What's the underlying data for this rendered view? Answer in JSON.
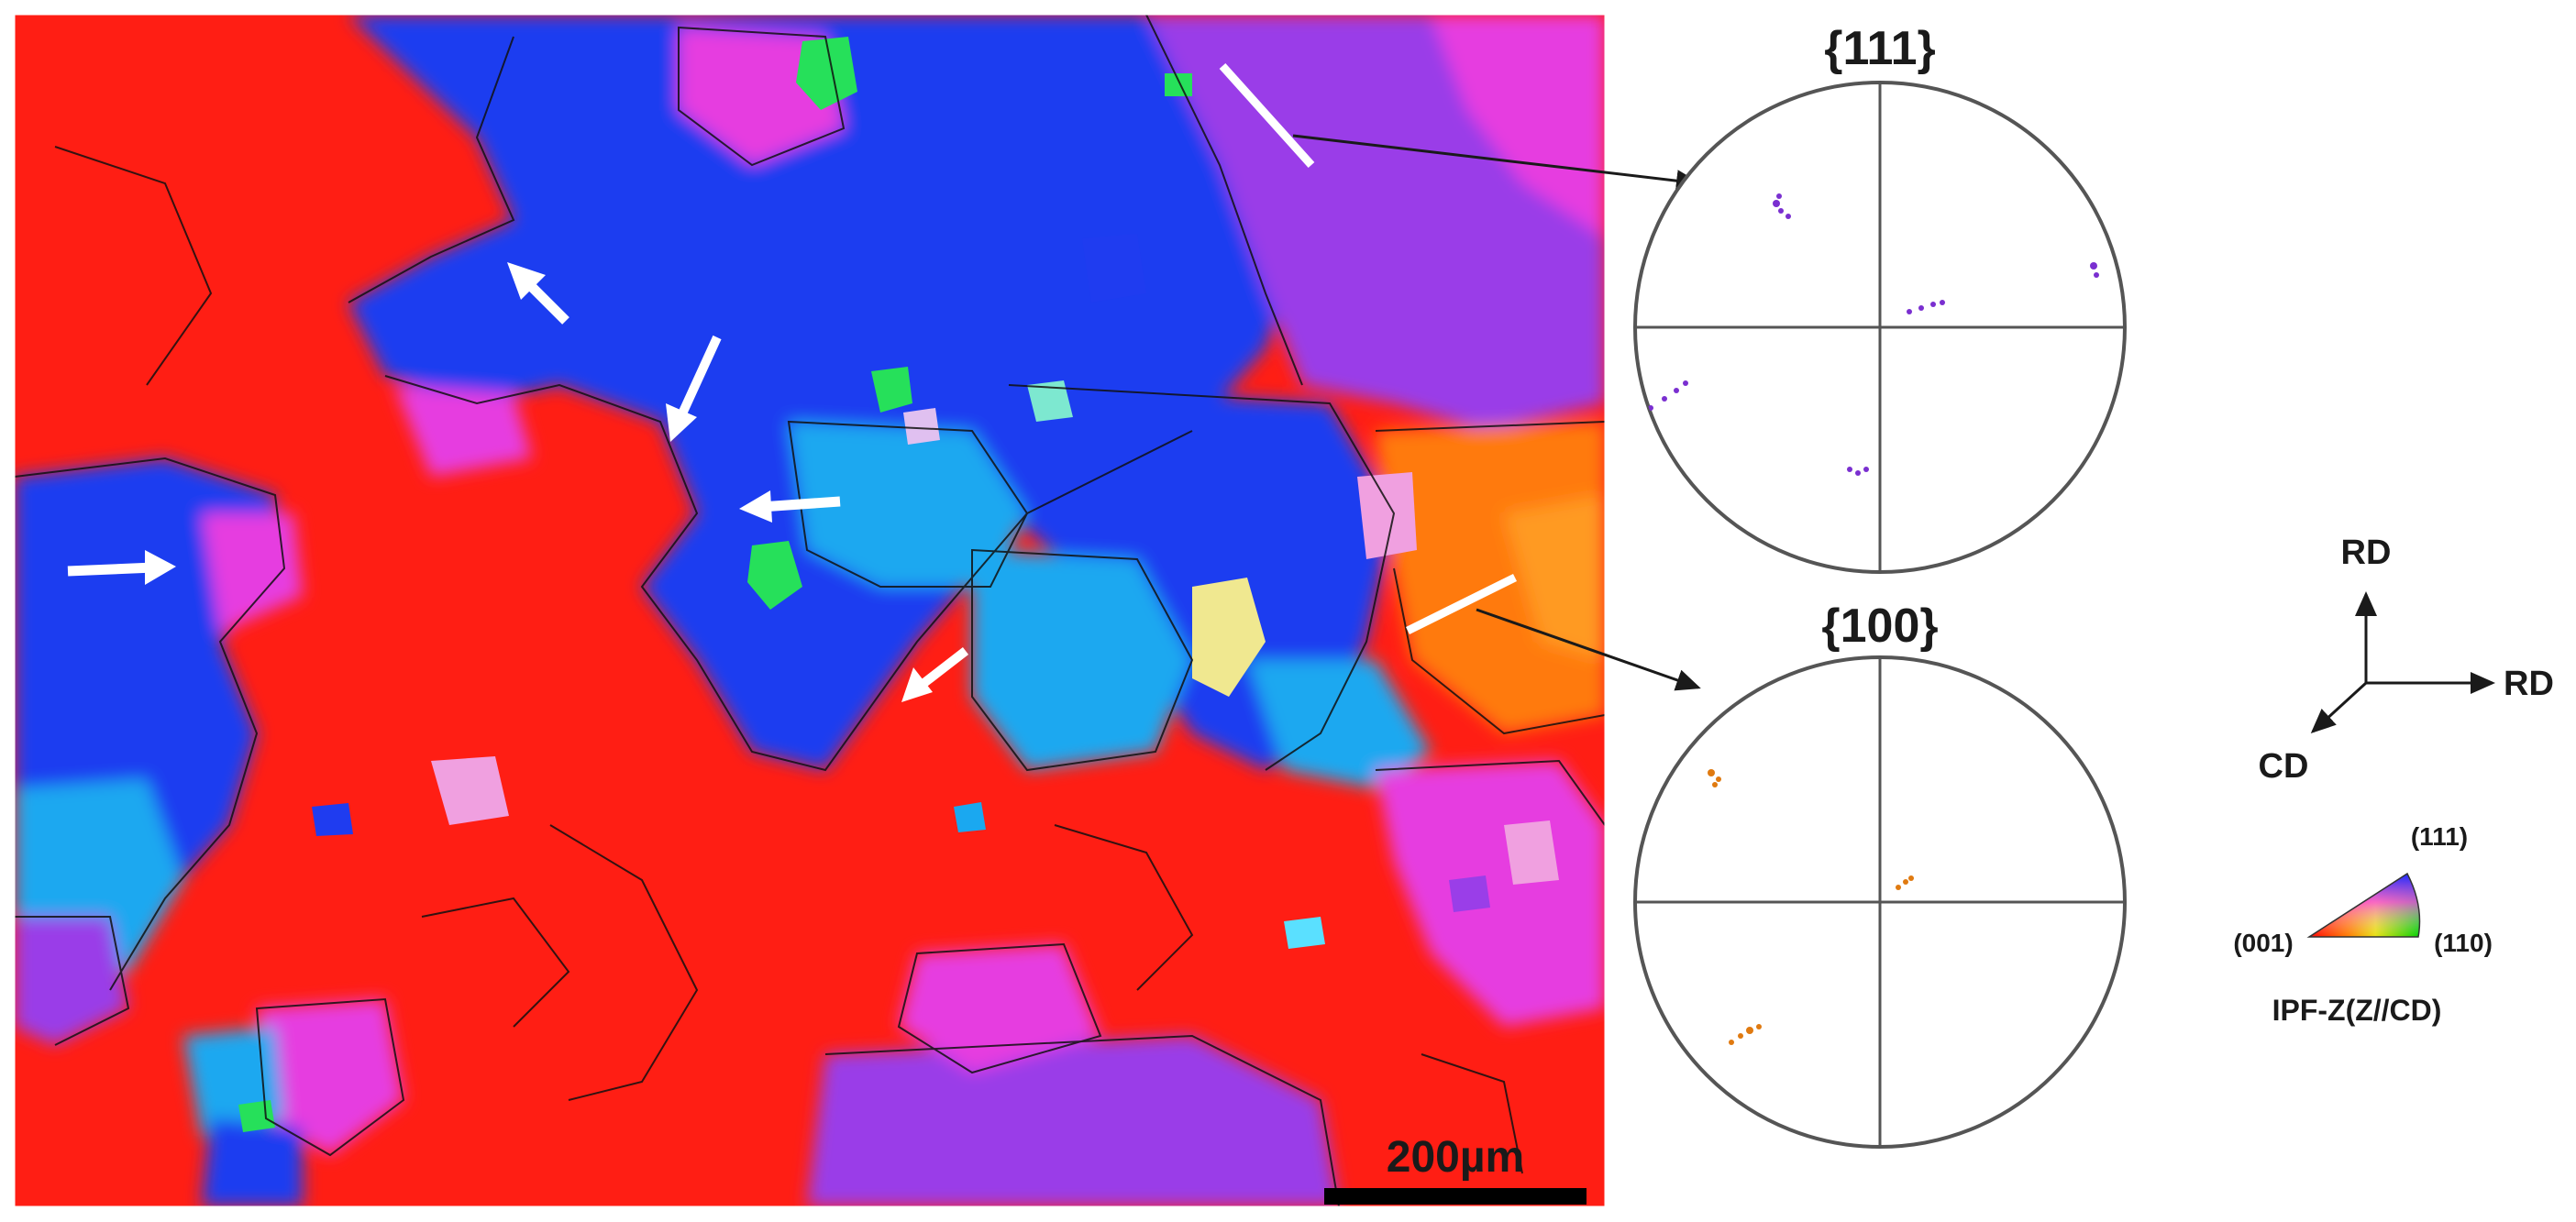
{
  "ebsd_map": {
    "scale_bar_label": "200µm"
  },
  "pole_figures": [
    {
      "label": "{111}",
      "pole_color": "#7a2fd0"
    },
    {
      "label": "{100}",
      "pole_color": "#e07a10"
    }
  ],
  "axes": {
    "vertical": "RD",
    "horizontal": "RD",
    "diagonal": "CD"
  },
  "ipf_key": {
    "corner_top": "(111)",
    "corner_left": "(001)",
    "corner_right": "(110)",
    "title": "IPF-Z(Z//CD)",
    "color_001": "#ff0000",
    "color_110": "#00d000",
    "color_111": "#1a2aff"
  },
  "colors": {
    "grain_red": "#ff1e14",
    "grain_blue": "#1f3cf0",
    "grain_cyan": "#1aa8f0",
    "grain_magenta": "#e63ce0",
    "grain_violet": "#9a3ee8",
    "grain_orange": "#ff7a10",
    "grain_green": "#26e05a",
    "marker": "#ffffff"
  }
}
